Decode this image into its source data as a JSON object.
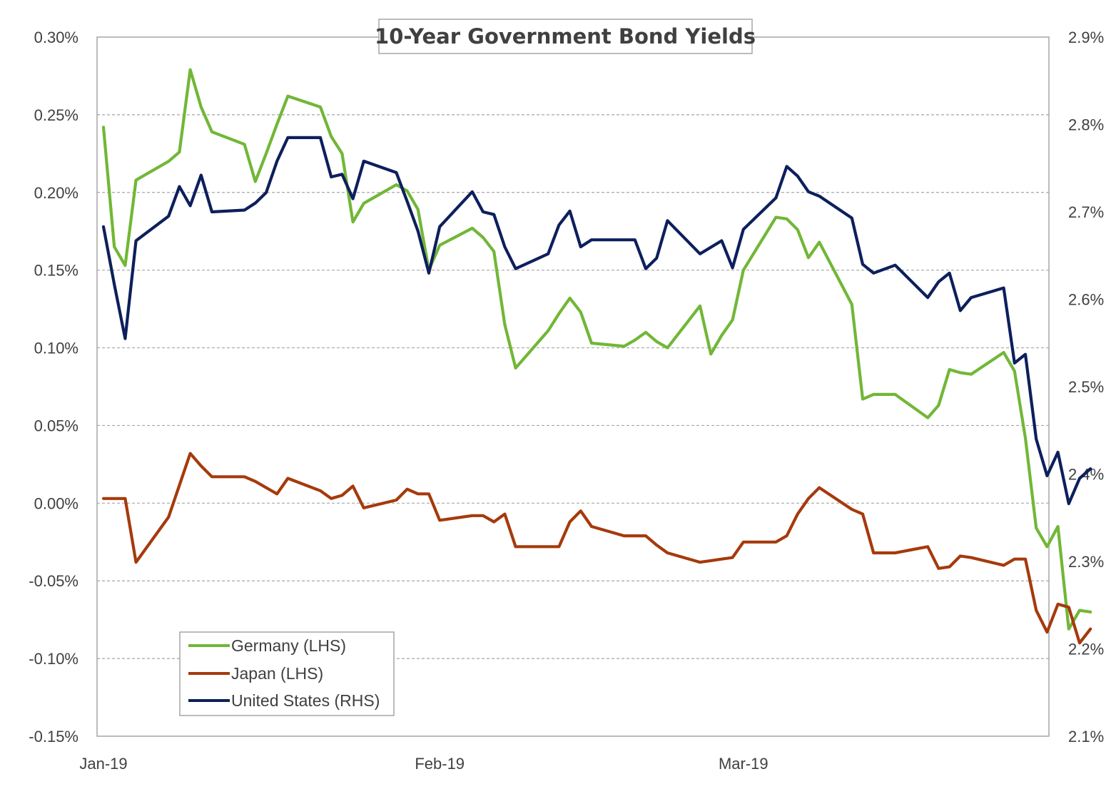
{
  "chart_data": {
    "type": "line",
    "title": "10-Year Government Bond Yields",
    "x_tick_labels": [
      {
        "label": "Jan-19",
        "date": "2019-01-01"
      },
      {
        "label": "Feb-19",
        "date": "2019-02-01"
      },
      {
        "label": "Mar-19",
        "date": "2019-03-01"
      }
    ],
    "x_range": [
      "2019-01-01",
      "2019-03-29"
    ],
    "y_left": {
      "range": [
        -0.15,
        0.3
      ],
      "ticks": [
        -0.15,
        -0.1,
        -0.05,
        0.0,
        0.05,
        0.1,
        0.15,
        0.2,
        0.25,
        0.3
      ],
      "tick_labels": [
        "-0.15%",
        "-0.10%",
        "-0.05%",
        "0.00%",
        "0.05%",
        "0.10%",
        "0.15%",
        "0.20%",
        "0.25%",
        "0.30%"
      ]
    },
    "y_right": {
      "range": [
        2.1,
        2.9
      ],
      "ticks": [
        2.1,
        2.2,
        2.3,
        2.4,
        2.5,
        2.6,
        2.7,
        2.8,
        2.9
      ],
      "tick_labels": [
        "2.1%",
        "2.2%",
        "2.3%",
        "2.4%",
        "2.5%",
        "2.6%",
        "2.7%",
        "2.8%",
        "2.9%"
      ]
    },
    "grid": "horizontal-dashed",
    "legend_position": "bottom-left",
    "series": [
      {
        "name": "Germany (LHS)",
        "axis": "left",
        "color": "#71B737",
        "points": [
          [
            "2019-01-01",
            0.242
          ],
          [
            "2019-01-02",
            0.165
          ],
          [
            "2019-01-03",
            0.153
          ],
          [
            "2019-01-04",
            0.208
          ],
          [
            "2019-01-07",
            0.22
          ],
          [
            "2019-01-08",
            0.226
          ],
          [
            "2019-01-09",
            0.279
          ],
          [
            "2019-01-10",
            0.255
          ],
          [
            "2019-01-11",
            0.239
          ],
          [
            "2019-01-14",
            0.231
          ],
          [
            "2019-01-15",
            0.207
          ],
          [
            "2019-01-16",
            0.225
          ],
          [
            "2019-01-17",
            0.244
          ],
          [
            "2019-01-18",
            0.262
          ],
          [
            "2019-01-21",
            0.255
          ],
          [
            "2019-01-22",
            0.236
          ],
          [
            "2019-01-23",
            0.225
          ],
          [
            "2019-01-24",
            0.181
          ],
          [
            "2019-01-25",
            0.193
          ],
          [
            "2019-01-28",
            0.205
          ],
          [
            "2019-01-29",
            0.201
          ],
          [
            "2019-01-30",
            0.189
          ],
          [
            "2019-01-31",
            0.15
          ],
          [
            "2019-02-01",
            0.166
          ],
          [
            "2019-02-04",
            0.177
          ],
          [
            "2019-02-05",
            0.171
          ],
          [
            "2019-02-06",
            0.162
          ],
          [
            "2019-02-07",
            0.115
          ],
          [
            "2019-02-08",
            0.087
          ],
          [
            "2019-02-11",
            0.111
          ],
          [
            "2019-02-12",
            0.122
          ],
          [
            "2019-02-13",
            0.132
          ],
          [
            "2019-02-14",
            0.123
          ],
          [
            "2019-02-15",
            0.103
          ],
          [
            "2019-02-18",
            0.101
          ],
          [
            "2019-02-19",
            0.105
          ],
          [
            "2019-02-20",
            0.11
          ],
          [
            "2019-02-21",
            0.104
          ],
          [
            "2019-02-22",
            0.1
          ],
          [
            "2019-02-25",
            0.127
          ],
          [
            "2019-02-26",
            0.096
          ],
          [
            "2019-02-27",
            0.108
          ],
          [
            "2019-02-28",
            0.118
          ],
          [
            "2019-03-01",
            0.15
          ],
          [
            "2019-03-04",
            0.184
          ],
          [
            "2019-03-05",
            0.183
          ],
          [
            "2019-03-06",
            0.176
          ],
          [
            "2019-03-07",
            0.158
          ],
          [
            "2019-03-08",
            0.168
          ],
          [
            "2019-03-11",
            0.128
          ],
          [
            "2019-03-12",
            0.067
          ],
          [
            "2019-03-13",
            0.07
          ],
          [
            "2019-03-14",
            0.07
          ],
          [
            "2019-03-15",
            0.07
          ],
          [
            "2019-03-18",
            0.055
          ],
          [
            "2019-03-19",
            0.063
          ],
          [
            "2019-03-20",
            0.086
          ],
          [
            "2019-03-21",
            0.084
          ],
          [
            "2019-03-22",
            0.083
          ],
          [
            "2019-03-25",
            0.097
          ],
          [
            "2019-03-26",
            0.085
          ],
          [
            "2019-03-27",
            0.042
          ],
          [
            "2019-03-28",
            -0.016
          ],
          [
            "2019-03-29",
            -0.028
          ],
          [
            "2019-03-30",
            -0.015
          ],
          [
            "2019-03-31",
            -0.081
          ],
          [
            "2019-04-01",
            -0.069
          ],
          [
            "2019-04-02",
            -0.07
          ]
        ]
      },
      {
        "name": "Japan (LHS)",
        "axis": "left",
        "color": "#A53A0C",
        "points": [
          [
            "2019-01-01",
            0.003
          ],
          [
            "2019-01-02",
            0.003
          ],
          [
            "2019-01-03",
            0.003
          ],
          [
            "2019-01-04",
            -0.038
          ],
          [
            "2019-01-07",
            -0.009
          ],
          [
            "2019-01-09",
            0.032
          ],
          [
            "2019-01-10",
            0.024
          ],
          [
            "2019-01-11",
            0.017
          ],
          [
            "2019-01-14",
            0.017
          ],
          [
            "2019-01-15",
            0.014
          ],
          [
            "2019-01-16",
            0.01
          ],
          [
            "2019-01-17",
            0.006
          ],
          [
            "2019-01-18",
            0.016
          ],
          [
            "2019-01-21",
            0.008
          ],
          [
            "2019-01-22",
            0.003
          ],
          [
            "2019-01-23",
            0.005
          ],
          [
            "2019-01-24",
            0.011
          ],
          [
            "2019-01-25",
            -0.003
          ],
          [
            "2019-01-28",
            0.002
          ],
          [
            "2019-01-29",
            0.009
          ],
          [
            "2019-01-30",
            0.006
          ],
          [
            "2019-01-31",
            0.006
          ],
          [
            "2019-02-01",
            -0.011
          ],
          [
            "2019-02-04",
            -0.008
          ],
          [
            "2019-02-05",
            -0.008
          ],
          [
            "2019-02-06",
            -0.012
          ],
          [
            "2019-02-07",
            -0.007
          ],
          [
            "2019-02-08",
            -0.028
          ],
          [
            "2019-02-11",
            -0.028
          ],
          [
            "2019-02-12",
            -0.028
          ],
          [
            "2019-02-13",
            -0.012
          ],
          [
            "2019-02-14",
            -0.005
          ],
          [
            "2019-02-15",
            -0.015
          ],
          [
            "2019-02-18",
            -0.021
          ],
          [
            "2019-02-19",
            -0.021
          ],
          [
            "2019-02-20",
            -0.021
          ],
          [
            "2019-02-21",
            -0.027
          ],
          [
            "2019-02-22",
            -0.032
          ],
          [
            "2019-02-25",
            -0.038
          ],
          [
            "2019-02-26",
            -0.037
          ],
          [
            "2019-02-27",
            -0.036
          ],
          [
            "2019-02-28",
            -0.035
          ],
          [
            "2019-03-01",
            -0.025
          ],
          [
            "2019-03-04",
            -0.025
          ],
          [
            "2019-03-05",
            -0.021
          ],
          [
            "2019-03-06",
            -0.007
          ],
          [
            "2019-03-07",
            0.003
          ],
          [
            "2019-03-08",
            0.01
          ],
          [
            "2019-03-11",
            -0.004
          ],
          [
            "2019-03-12",
            -0.007
          ],
          [
            "2019-03-13",
            -0.032
          ],
          [
            "2019-03-14",
            -0.032
          ],
          [
            "2019-03-15",
            -0.032
          ],
          [
            "2019-03-18",
            -0.028
          ],
          [
            "2019-03-19",
            -0.042
          ],
          [
            "2019-03-20",
            -0.041
          ],
          [
            "2019-03-21",
            -0.034
          ],
          [
            "2019-03-22",
            -0.035
          ],
          [
            "2019-03-25",
            -0.04
          ],
          [
            "2019-03-26",
            -0.036
          ],
          [
            "2019-03-27",
            -0.036
          ],
          [
            "2019-03-28",
            -0.069
          ],
          [
            "2019-03-29",
            -0.083
          ],
          [
            "2019-03-30",
            -0.065
          ],
          [
            "2019-03-31",
            -0.067
          ],
          [
            "2019-04-01",
            -0.09
          ],
          [
            "2019-04-02",
            -0.081
          ]
        ]
      },
      {
        "name": "United States (RHS)",
        "axis": "right",
        "color": "#0D1F5C",
        "points": [
          [
            "2019-01-01",
            2.683
          ],
          [
            "2019-01-02",
            2.617
          ],
          [
            "2019-01-03",
            2.555
          ],
          [
            "2019-01-04",
            2.667
          ],
          [
            "2019-01-07",
            2.695
          ],
          [
            "2019-01-08",
            2.729
          ],
          [
            "2019-01-09",
            2.707
          ],
          [
            "2019-01-10",
            2.742
          ],
          [
            "2019-01-11",
            2.7
          ],
          [
            "2019-01-14",
            2.702
          ],
          [
            "2019-01-15",
            2.71
          ],
          [
            "2019-01-16",
            2.722
          ],
          [
            "2019-01-17",
            2.758
          ],
          [
            "2019-01-18",
            2.785
          ],
          [
            "2019-01-21",
            2.785
          ],
          [
            "2019-01-22",
            2.74
          ],
          [
            "2019-01-23",
            2.743
          ],
          [
            "2019-01-24",
            2.715
          ],
          [
            "2019-01-25",
            2.758
          ],
          [
            "2019-01-28",
            2.745
          ],
          [
            "2019-01-29",
            2.712
          ],
          [
            "2019-01-30",
            2.678
          ],
          [
            "2019-01-31",
            2.63
          ],
          [
            "2019-02-01",
            2.683
          ],
          [
            "2019-02-04",
            2.723
          ],
          [
            "2019-02-05",
            2.7
          ],
          [
            "2019-02-06",
            2.697
          ],
          [
            "2019-02-07",
            2.66
          ],
          [
            "2019-02-08",
            2.635
          ],
          [
            "2019-02-11",
            2.652
          ],
          [
            "2019-02-12",
            2.685
          ],
          [
            "2019-02-13",
            2.701
          ],
          [
            "2019-02-14",
            2.66
          ],
          [
            "2019-02-15",
            2.668
          ],
          [
            "2019-02-18",
            2.668
          ],
          [
            "2019-02-19",
            2.668
          ],
          [
            "2019-02-20",
            2.635
          ],
          [
            "2019-02-21",
            2.647
          ],
          [
            "2019-02-22",
            2.69
          ],
          [
            "2019-02-25",
            2.652
          ],
          [
            "2019-02-27",
            2.667
          ],
          [
            "2019-02-28",
            2.636
          ],
          [
            "2019-03-01",
            2.68
          ],
          [
            "2019-03-04",
            2.716
          ],
          [
            "2019-03-05",
            2.752
          ],
          [
            "2019-03-06",
            2.741
          ],
          [
            "2019-03-07",
            2.723
          ],
          [
            "2019-03-08",
            2.718
          ],
          [
            "2019-03-11",
            2.693
          ],
          [
            "2019-03-12",
            2.64
          ],
          [
            "2019-03-13",
            2.63
          ],
          [
            "2019-03-15",
            2.639
          ],
          [
            "2019-03-18",
            2.602
          ],
          [
            "2019-03-19",
            2.62
          ],
          [
            "2019-03-20",
            2.63
          ],
          [
            "2019-03-21",
            2.587
          ],
          [
            "2019-03-22",
            2.602
          ],
          [
            "2019-03-25",
            2.613
          ],
          [
            "2019-03-26",
            2.527
          ],
          [
            "2019-03-27",
            2.537
          ],
          [
            "2019-03-28",
            2.44
          ],
          [
            "2019-03-29",
            2.398
          ],
          [
            "2019-03-30",
            2.425
          ],
          [
            "2019-03-31",
            2.366
          ],
          [
            "2019-04-01",
            2.395
          ],
          [
            "2019-04-02",
            2.406
          ]
        ]
      }
    ]
  }
}
